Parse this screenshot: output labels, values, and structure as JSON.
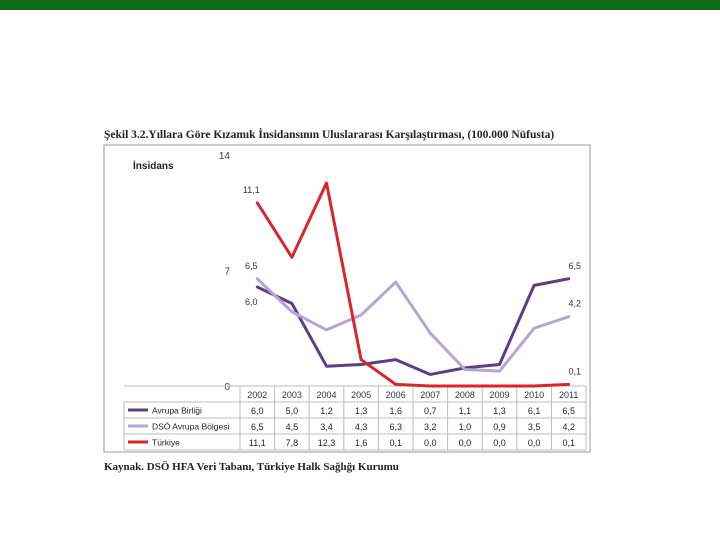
{
  "page": {
    "accent_color": "#0e6b1a"
  },
  "chart_data": {
    "type": "line",
    "title": "Şekil 3.2.Yıllara Göre Kızamık İnsidansının Uluslararası Karşılaştırması, (100.000 Nüfusta)",
    "ylabel": "İnsidans",
    "xlabel": "",
    "ylim": [
      0,
      14
    ],
    "yticks": [
      "0",
      "7",
      "14"
    ],
    "categories": [
      "2002",
      "2003",
      "2004",
      "2005",
      "2006",
      "2007",
      "2008",
      "2009",
      "2010",
      "2011"
    ],
    "series": [
      {
        "name": "Avrupa Birliği",
        "color": "#5b3f86",
        "values": [
          6.0,
          5.0,
          1.2,
          1.3,
          1.6,
          0.7,
          1.1,
          1.3,
          6.1,
          6.5
        ],
        "table": [
          "6,0",
          "5,0",
          "1,2",
          "1,3",
          "1,6",
          "0,7",
          "1,1",
          "1,3",
          "6,1",
          "6,5"
        ]
      },
      {
        "name": "DSÖ Avrupa Bölgesi",
        "color": "#b5a6d1",
        "values": [
          6.5,
          4.5,
          3.4,
          4.3,
          6.3,
          3.2,
          1.0,
          0.9,
          3.5,
          4.2
        ],
        "table": [
          "6,5",
          "4,5",
          "3,4",
          "4,3",
          "6,3",
          "3,2",
          "1,0",
          "0,9",
          "3,5",
          "4,2"
        ]
      },
      {
        "name": "Türkiye",
        "color": "#d9262c",
        "values": [
          11.1,
          7.8,
          12.3,
          1.6,
          0.1,
          0.0,
          0.0,
          0.0,
          0.0,
          0.1
        ],
        "table": [
          "11,1",
          "7,8",
          "12,3",
          "1,6",
          "0,1",
          "0,0",
          "0,0",
          "0,0",
          "0,0",
          "0,1"
        ]
      }
    ],
    "annotations": [
      {
        "text": "11,1",
        "series": 2,
        "index": 0,
        "pos": "above"
      },
      {
        "text": "6,5",
        "series": 1,
        "index": 0,
        "pos": "above"
      },
      {
        "text": "6,0",
        "series": 0,
        "index": 0,
        "pos": "below"
      },
      {
        "text": "6,5",
        "series": 0,
        "index": 9,
        "pos": "above"
      },
      {
        "text": "4,2",
        "series": 1,
        "index": 9,
        "pos": "above"
      },
      {
        "text": "0,1",
        "series": 2,
        "index": 9,
        "pos": "above"
      }
    ],
    "source": "Kaynak. DSÖ HFA Veri Tabanı, Türkiye Halk Sağlığı Kurumu"
  }
}
